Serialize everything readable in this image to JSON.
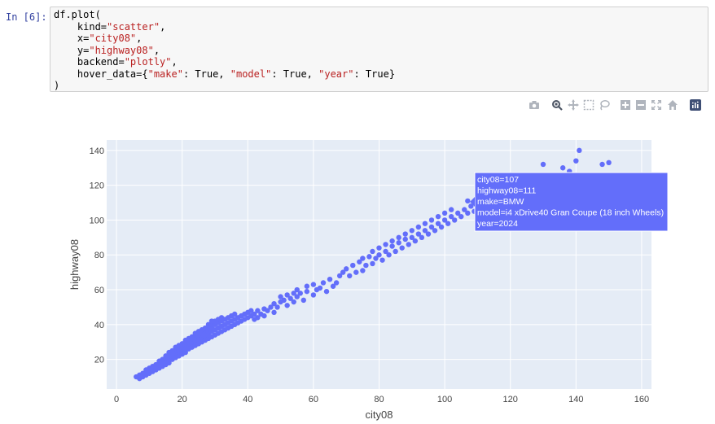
{
  "cell": {
    "prompt": "In [6]:",
    "code_lines": [
      [
        {
          "t": "df.plot("
        }
      ],
      [
        {
          "t": "    kind="
        },
        {
          "s": "\"scatter\""
        },
        {
          "t": ","
        }
      ],
      [
        {
          "t": "    x="
        },
        {
          "s": "\"city08\""
        },
        {
          "t": ","
        }
      ],
      [
        {
          "t": "    y="
        },
        {
          "s": "\"highway08\""
        },
        {
          "t": ","
        }
      ],
      [
        {
          "t": "    backend="
        },
        {
          "s": "\"plotly\""
        },
        {
          "t": ","
        }
      ],
      [
        {
          "t": "    hover_data={"
        },
        {
          "s": "\"make\""
        },
        {
          "t": ": True, "
        },
        {
          "s": "\"model\""
        },
        {
          "t": ": True, "
        },
        {
          "s": "\"year\""
        },
        {
          "t": ": True}"
        }
      ],
      [
        {
          "t": ")"
        }
      ]
    ]
  },
  "modebar": {
    "icons": [
      "camera-icon",
      "zoom-icon",
      "pan-icon",
      "box-select-icon",
      "lasso-select-icon",
      "zoom-in-icon",
      "zoom-out-icon",
      "autoscale-icon",
      "reset-axes-icon",
      "plotly-logo-icon"
    ]
  },
  "chart_data": {
    "type": "scatter",
    "xlabel": "city08",
    "ylabel": "highway08",
    "xlim": [
      -3,
      163
    ],
    "ylim": [
      3,
      146
    ],
    "xticks": [
      0,
      20,
      40,
      60,
      80,
      100,
      120,
      140,
      160
    ],
    "yticks": [
      20,
      40,
      60,
      80,
      100,
      120,
      140
    ],
    "grid": true,
    "marker_color": "#636efa",
    "plot_bg": "#e5ecf6",
    "series": [
      {
        "points": [
          [
            6,
            10
          ],
          [
            7,
            9
          ],
          [
            7,
            11
          ],
          [
            8,
            10
          ],
          [
            8,
            12
          ],
          [
            9,
            11
          ],
          [
            9,
            13
          ],
          [
            9,
            14
          ],
          [
            10,
            12
          ],
          [
            10,
            14
          ],
          [
            10,
            15
          ],
          [
            11,
            13
          ],
          [
            11,
            15
          ],
          [
            11,
            16
          ],
          [
            12,
            14
          ],
          [
            12,
            16
          ],
          [
            12,
            17
          ],
          [
            13,
            15
          ],
          [
            13,
            17
          ],
          [
            13,
            18
          ],
          [
            13,
            19
          ],
          [
            14,
            16
          ],
          [
            14,
            18
          ],
          [
            14,
            19
          ],
          [
            14,
            20
          ],
          [
            15,
            17
          ],
          [
            15,
            19
          ],
          [
            15,
            20
          ],
          [
            15,
            21
          ],
          [
            15,
            22
          ],
          [
            16,
            18
          ],
          [
            16,
            20
          ],
          [
            16,
            22
          ],
          [
            16,
            23
          ],
          [
            16,
            24
          ],
          [
            17,
            20
          ],
          [
            17,
            22
          ],
          [
            17,
            23
          ],
          [
            17,
            24
          ],
          [
            17,
            25
          ],
          [
            18,
            21
          ],
          [
            18,
            23
          ],
          [
            18,
            24
          ],
          [
            18,
            25
          ],
          [
            18,
            26
          ],
          [
            18,
            27
          ],
          [
            19,
            22
          ],
          [
            19,
            24
          ],
          [
            19,
            25
          ],
          [
            19,
            26
          ],
          [
            19,
            27
          ],
          [
            19,
            28
          ],
          [
            20,
            23
          ],
          [
            20,
            25
          ],
          [
            20,
            26
          ],
          [
            20,
            27
          ],
          [
            20,
            28
          ],
          [
            20,
            29
          ],
          [
            21,
            24
          ],
          [
            21,
            26
          ],
          [
            21,
            28
          ],
          [
            21,
            29
          ],
          [
            21,
            30
          ],
          [
            21,
            31
          ],
          [
            22,
            26
          ],
          [
            22,
            28
          ],
          [
            22,
            29
          ],
          [
            22,
            30
          ],
          [
            22,
            31
          ],
          [
            22,
            32
          ],
          [
            23,
            27
          ],
          [
            23,
            29
          ],
          [
            23,
            30
          ],
          [
            23,
            31
          ],
          [
            23,
            32
          ],
          [
            23,
            33
          ],
          [
            24,
            28
          ],
          [
            24,
            30
          ],
          [
            24,
            31
          ],
          [
            24,
            33
          ],
          [
            24,
            34
          ],
          [
            24,
            35
          ],
          [
            25,
            29
          ],
          [
            25,
            31
          ],
          [
            25,
            33
          ],
          [
            25,
            34
          ],
          [
            25,
            36
          ],
          [
            26,
            30
          ],
          [
            26,
            32
          ],
          [
            26,
            34
          ],
          [
            26,
            35
          ],
          [
            26,
            37
          ],
          [
            27,
            31
          ],
          [
            27,
            33
          ],
          [
            27,
            35
          ],
          [
            27,
            37
          ],
          [
            27,
            38
          ],
          [
            28,
            32
          ],
          [
            28,
            34
          ],
          [
            28,
            36
          ],
          [
            28,
            38
          ],
          [
            28,
            40
          ],
          [
            29,
            33
          ],
          [
            29,
            36
          ],
          [
            29,
            38
          ],
          [
            29,
            40
          ],
          [
            29,
            42
          ],
          [
            30,
            34
          ],
          [
            30,
            37
          ],
          [
            30,
            40
          ],
          [
            30,
            42
          ],
          [
            31,
            35
          ],
          [
            31,
            38
          ],
          [
            31,
            41
          ],
          [
            31,
            43
          ],
          [
            32,
            36
          ],
          [
            32,
            39
          ],
          [
            32,
            42
          ],
          [
            32,
            44
          ],
          [
            33,
            37
          ],
          [
            33,
            40
          ],
          [
            33,
            43
          ],
          [
            34,
            38
          ],
          [
            34,
            41
          ],
          [
            34,
            44
          ],
          [
            35,
            39
          ],
          [
            35,
            42
          ],
          [
            35,
            45
          ],
          [
            36,
            40
          ],
          [
            36,
            43
          ],
          [
            36,
            46
          ],
          [
            37,
            41
          ],
          [
            37,
            44
          ],
          [
            38,
            42
          ],
          [
            38,
            45
          ],
          [
            39,
            43
          ],
          [
            39,
            46
          ],
          [
            40,
            44
          ],
          [
            40,
            47
          ],
          [
            41,
            45
          ],
          [
            41,
            48
          ],
          [
            42,
            43
          ],
          [
            42,
            46
          ],
          [
            43,
            44
          ],
          [
            43,
            48
          ],
          [
            44,
            46
          ],
          [
            45,
            45
          ],
          [
            45,
            49
          ],
          [
            46,
            48
          ],
          [
            47,
            50
          ],
          [
            48,
            47
          ],
          [
            48,
            52
          ],
          [
            49,
            50
          ],
          [
            50,
            53
          ],
          [
            50,
            56
          ],
          [
            51,
            54
          ],
          [
            52,
            51
          ],
          [
            52,
            57
          ],
          [
            53,
            55
          ],
          [
            54,
            53
          ],
          [
            54,
            58
          ],
          [
            55,
            56
          ],
          [
            55,
            60
          ],
          [
            56,
            58
          ],
          [
            57,
            54
          ],
          [
            58,
            59
          ],
          [
            58,
            62
          ],
          [
            60,
            57
          ],
          [
            60,
            63
          ],
          [
            61,
            60
          ],
          [
            62,
            61
          ],
          [
            63,
            64
          ],
          [
            64,
            59
          ],
          [
            65,
            66
          ],
          [
            66,
            62
          ],
          [
            67,
            64
          ],
          [
            68,
            68
          ],
          [
            69,
            70
          ],
          [
            70,
            72
          ],
          [
            71,
            68
          ],
          [
            72,
            74
          ],
          [
            73,
            70
          ],
          [
            74,
            76
          ],
          [
            75,
            71
          ],
          [
            75,
            78
          ],
          [
            76,
            74
          ],
          [
            77,
            79
          ],
          [
            78,
            75
          ],
          [
            78,
            82
          ],
          [
            79,
            78
          ],
          [
            80,
            80
          ],
          [
            80,
            84
          ],
          [
            81,
            77
          ],
          [
            82,
            82
          ],
          [
            82,
            86
          ],
          [
            83,
            80
          ],
          [
            84,
            85
          ],
          [
            84,
            88
          ],
          [
            85,
            82
          ],
          [
            86,
            87
          ],
          [
            86,
            90
          ],
          [
            87,
            84
          ],
          [
            88,
            89
          ],
          [
            88,
            92
          ],
          [
            89,
            86
          ],
          [
            90,
            90
          ],
          [
            90,
            94
          ],
          [
            91,
            88
          ],
          [
            92,
            92
          ],
          [
            92,
            96
          ],
          [
            93,
            90
          ],
          [
            94,
            94
          ],
          [
            94,
            98
          ],
          [
            95,
            92
          ],
          [
            96,
            96
          ],
          [
            96,
            100
          ],
          [
            97,
            94
          ],
          [
            98,
            98
          ],
          [
            98,
            102
          ],
          [
            99,
            96
          ],
          [
            100,
            100
          ],
          [
            100,
            104
          ],
          [
            101,
            98
          ],
          [
            102,
            102
          ],
          [
            102,
            106
          ],
          [
            103,
            100
          ],
          [
            104,
            104
          ],
          [
            105,
            102
          ],
          [
            106,
            106
          ],
          [
            107,
            104
          ],
          [
            107,
            111
          ],
          [
            108,
            108
          ],
          [
            109,
            105
          ],
          [
            110,
            110
          ],
          [
            112,
            106
          ],
          [
            114,
            110
          ],
          [
            116,
            108
          ],
          [
            118,
            112
          ],
          [
            120,
            110
          ],
          [
            122,
            114
          ],
          [
            124,
            110
          ],
          [
            126,
            116
          ],
          [
            128,
            112
          ],
          [
            130,
            132
          ],
          [
            132,
            120
          ],
          [
            134,
            118
          ],
          [
            136,
            130
          ],
          [
            138,
            128
          ],
          [
            140,
            134
          ],
          [
            141,
            140
          ],
          [
            148,
            132
          ],
          [
            150,
            133
          ]
        ]
      }
    ]
  },
  "tooltip": {
    "lines": [
      "city08=107",
      "highway08=111",
      "make=BMW",
      "model=i4 xDrive40 Gran Coupe (18 inch Wheels)",
      "year=2024"
    ],
    "bg": "#636efa"
  }
}
